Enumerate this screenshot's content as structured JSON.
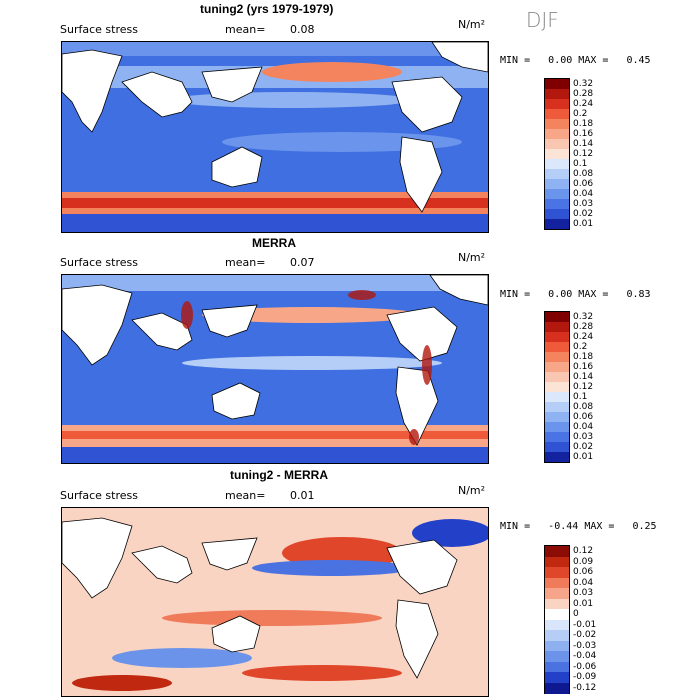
{
  "season": "DJF",
  "panels": [
    {
      "title": "tuning2 (yrs 1979-1979)",
      "field": "Surface stress",
      "mean_label": "mean=",
      "mean_value": "0.08",
      "units": "N/m²",
      "min_label": "MIN =",
      "min_value": "0.00",
      "max_label": "MAX =",
      "max_value": "0.45",
      "colorbar_ticks": [
        "0.32",
        "0.28",
        "0.24",
        "0.2",
        "0.18",
        "0.16",
        "0.14",
        "0.12",
        "0.1",
        "0.08",
        "0.06",
        "0.04",
        "0.03",
        "0.02",
        "0.01"
      ]
    },
    {
      "title": "MERRA",
      "field": "Surface stress",
      "mean_label": "mean=",
      "mean_value": "0.07",
      "units": "N/m²",
      "min_label": "MIN =",
      "min_value": "0.00",
      "max_label": "MAX =",
      "max_value": "0.83",
      "colorbar_ticks": [
        "0.32",
        "0.28",
        "0.24",
        "0.2",
        "0.18",
        "0.16",
        "0.14",
        "0.12",
        "0.1",
        "0.08",
        "0.06",
        "0.04",
        "0.03",
        "0.02",
        "0.01"
      ]
    },
    {
      "title": "tuning2 - MERRA",
      "field": "Surface stress",
      "mean_label": "mean=",
      "mean_value": "0.01",
      "units": "N/m²",
      "min_label": "MIN =",
      "min_value": "-0.44",
      "max_label": "MAX =",
      "max_value": "0.25",
      "colorbar_ticks": [
        "0.12",
        "0.09",
        "0.06",
        "0.04",
        "0.03",
        "0.01",
        "0",
        "-0.01",
        "-0.02",
        "-0.03",
        "-0.04",
        "-0.06",
        "-0.09",
        "-0.12"
      ]
    }
  ],
  "colors": {
    "seq": [
      "#7f0000",
      "#b2180e",
      "#d7301f",
      "#ef5a3a",
      "#f4845e",
      "#f7a688",
      "#f9c7b1",
      "#fbe3d6",
      "#dbe8fb",
      "#b5cef7",
      "#8fb2f2",
      "#6b94ec",
      "#4a74e3",
      "#2f53d3",
      "#13229e"
    ],
    "div": [
      "#8a0c05",
      "#c0280f",
      "#e0462a",
      "#f07b5a",
      "#f6a58a",
      "#fad4c2",
      "#ffffff",
      "#d9e5fb",
      "#b6cdf6",
      "#8fb0f0",
      "#6b93ea",
      "#4a72e0",
      "#2340c8",
      "#0e1890"
    ],
    "land": "#ffffff",
    "coast": "#000000"
  }
}
